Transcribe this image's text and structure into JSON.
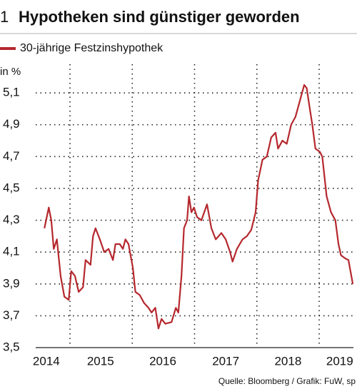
{
  "chart_data": {
    "type": "line",
    "number": "1",
    "title": "Hypotheken sind günstiger geworden",
    "y_axis_label": "in %",
    "source": "Quelle: Bloomberg / Grafik: FuW, sp",
    "xlim": [
      2014.45,
      2019.55
    ],
    "xticks": [
      {
        "value": 2014.62,
        "label": "2014"
      },
      {
        "value": 2015.49,
        "label": "2015"
      },
      {
        "value": 2016.49,
        "label": "2016"
      },
      {
        "value": 2017.5,
        "label": "2017"
      },
      {
        "value": 2018.5,
        "label": "2018"
      },
      {
        "value": 2019.33,
        "label": "2019"
      }
    ],
    "x_gridlines": [
      2015,
      2016,
      2017,
      2018,
      2019
    ],
    "ylim": [
      3.5,
      5.28
    ],
    "yticks": [
      {
        "value": 3.5,
        "label": "3,5"
      },
      {
        "value": 3.7,
        "label": "3,7"
      },
      {
        "value": 3.9,
        "label": "3,9"
      },
      {
        "value": 4.1,
        "label": "4,1"
      },
      {
        "value": 4.3,
        "label": "4,3"
      },
      {
        "value": 4.5,
        "label": "4,5"
      },
      {
        "value": 4.7,
        "label": "4,7"
      },
      {
        "value": 4.9,
        "label": "4,9"
      },
      {
        "value": 5.1,
        "label": "5,1"
      }
    ],
    "grid": true,
    "x": [
      2014.59,
      2014.66,
      2014.7,
      2014.74,
      2014.79,
      2014.85,
      2014.91,
      2014.98,
      2015.02,
      2015.08,
      2015.14,
      2015.21,
      2015.25,
      2015.33,
      2015.37,
      2015.41,
      2015.48,
      2015.55,
      2015.62,
      2015.69,
      2015.73,
      2015.8,
      2015.85,
      2015.89,
      2015.94,
      2016.01,
      2016.05,
      2016.12,
      2016.19,
      2016.26,
      2016.31,
      2016.37,
      2016.42,
      2016.47,
      2016.53,
      2016.63,
      2016.7,
      2016.74,
      2016.79,
      2016.83,
      2016.88,
      2016.91,
      2016.95,
      2016.99,
      2017.04,
      2017.11,
      2017.2,
      2017.27,
      2017.34,
      2017.43,
      2017.5,
      2017.57,
      2017.61,
      2017.68,
      2017.77,
      2017.84,
      2017.91,
      2017.98,
      2018.02,
      2018.09,
      2018.16,
      2018.23,
      2018.3,
      2018.34,
      2018.41,
      2018.48,
      2018.55,
      2018.62,
      2018.69,
      2018.76,
      2018.8,
      2018.85,
      2018.89,
      2018.94,
      2019.01,
      2019.05,
      2019.12,
      2019.19,
      2019.26,
      2019.31,
      2019.35,
      2019.42,
      2019.47,
      2019.54
    ],
    "series": [
      {
        "name": "30-jährige Festzinshypothek",
        "color": "#b5282e",
        "values": [
          4.25,
          4.38,
          4.3,
          4.12,
          4.18,
          3.95,
          3.82,
          3.8,
          3.98,
          3.95,
          3.85,
          3.88,
          4.05,
          4.02,
          4.2,
          4.25,
          4.18,
          4.1,
          4.12,
          4.05,
          4.15,
          4.15,
          4.12,
          4.18,
          4.15,
          4.0,
          3.85,
          3.83,
          3.78,
          3.75,
          3.72,
          3.75,
          3.62,
          3.68,
          3.65,
          3.66,
          3.75,
          3.72,
          3.95,
          4.25,
          4.3,
          4.45,
          4.35,
          4.38,
          4.32,
          4.3,
          4.4,
          4.25,
          4.18,
          4.22,
          4.18,
          4.1,
          4.04,
          4.12,
          4.18,
          4.2,
          4.24,
          4.35,
          4.55,
          4.68,
          4.7,
          4.82,
          4.85,
          4.75,
          4.8,
          4.78,
          4.9,
          4.95,
          5.05,
          5.15,
          5.13,
          5.0,
          4.9,
          4.75,
          4.73,
          4.7,
          4.45,
          4.35,
          4.3,
          4.15,
          4.08,
          4.06,
          4.05,
          3.9
        ]
      }
    ]
  }
}
